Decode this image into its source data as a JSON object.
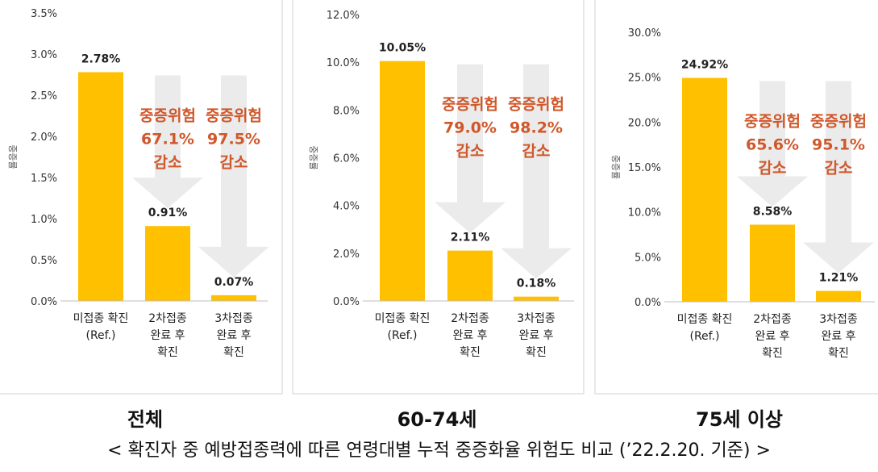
{
  "chart_data": [
    {
      "type": "bar",
      "title": "전체",
      "ylabel": "중증률",
      "ylim": [
        0,
        3.5
      ],
      "yticks": [
        "0.0%",
        "0.5%",
        "1.0%",
        "1.5%",
        "2.0%",
        "2.5%",
        "3.0%",
        "3.5%"
      ],
      "categories": [
        "미접종 확진\n(Ref.)",
        "2차접종\n완료 후\n확진",
        "3차접종\n완료 후\n확진"
      ],
      "values": [
        2.78,
        0.91,
        0.07
      ],
      "value_labels": [
        "2.78%",
        "0.91%",
        "0.07%"
      ],
      "annotations": [
        {
          "category_index": 1,
          "text": [
            "중증위험",
            "67.1%",
            "감소"
          ]
        },
        {
          "category_index": 2,
          "text": [
            "중증위험",
            "97.5%",
            "감소"
          ]
        }
      ]
    },
    {
      "type": "bar",
      "title": "60-74세",
      "ylabel": "중증률",
      "ylim": [
        0,
        12
      ],
      "yticks": [
        "0.0%",
        "2.0%",
        "4.0%",
        "6.0%",
        "8.0%",
        "10.0%",
        "12.0%"
      ],
      "categories": [
        "미접종 확진\n(Ref.)",
        "2차접종\n완료 후\n확진",
        "3차접종\n완료 후\n확진"
      ],
      "values": [
        10.05,
        2.11,
        0.18
      ],
      "value_labels": [
        "10.05%",
        "2.11%",
        "0.18%"
      ],
      "annotations": [
        {
          "category_index": 1,
          "text": [
            "중증위험",
            "79.0%",
            "감소"
          ]
        },
        {
          "category_index": 2,
          "text": [
            "중증위험",
            "98.2%",
            "감소"
          ]
        }
      ]
    },
    {
      "type": "bar",
      "title": "75세 이상",
      "ylabel": "중증률",
      "ylim": [
        0,
        30
      ],
      "yticks": [
        "0.0%",
        "5.0%",
        "10.0%",
        "15.0%",
        "20.0%",
        "25.0%",
        "30.0%"
      ],
      "categories": [
        "미접종 확진\n(Ref.)",
        "2차접종\n완료 후\n확진",
        "3차접종\n완료 후\n확진"
      ],
      "values": [
        24.92,
        8.58,
        1.21
      ],
      "value_labels": [
        "24.92%",
        "8.58%",
        "1.21%"
      ],
      "annotations": [
        {
          "category_index": 1,
          "text": [
            "중증위험",
            "65.6%",
            "감소"
          ]
        },
        {
          "category_index": 2,
          "text": [
            "중증위험",
            "95.1%",
            "감소"
          ]
        }
      ]
    }
  ],
  "caption": "< 확진자 중 예방접종력에 따른 연령대별 누적 중증화율 위험도 비교 (’22.2.20. 기준) >",
  "colors": {
    "bar": "#ffc000",
    "arrow": "#ebebeb",
    "annotation": "#d0572a",
    "text": "#222222",
    "panel_border": "#d0d0d0",
    "axis": "#bfbfbf"
  }
}
